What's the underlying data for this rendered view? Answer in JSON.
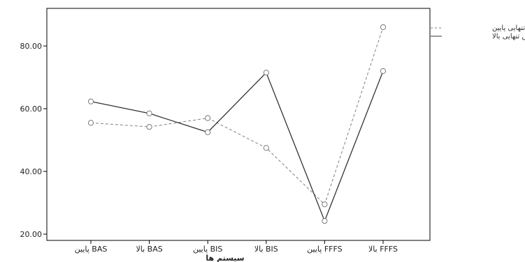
{
  "chart_data": {
    "type": "line",
    "xlabel": "سیستم ها",
    "ylabel": "",
    "categories": [
      "BAS پایین",
      "BAS بالا",
      "BIS پایین",
      "BIS بالا",
      "FFFS پایین",
      "FFFS بالا"
    ],
    "ylim": [
      18,
      92
    ],
    "yticks": [
      "20.00",
      "40.00",
      "60.00",
      "80.00"
    ],
    "grid": false,
    "legend_position": "top-right",
    "series": [
      {
        "name": "احساس تنهایی پایین",
        "style": "dashed",
        "color": "#808080",
        "values": [
          55.5,
          54.2,
          57.0,
          47.5,
          29.5,
          86.0
        ]
      },
      {
        "name": "احساس تنهایی بالا",
        "style": "solid",
        "color": "#333333",
        "values": [
          62.3,
          58.5,
          52.5,
          71.5,
          24.2,
          72.0
        ]
      }
    ]
  }
}
